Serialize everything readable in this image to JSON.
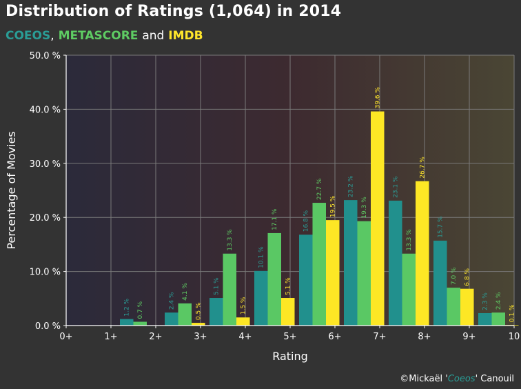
{
  "title": "Distribution  of Ratings  (1,064) in 2014",
  "subtitle": {
    "coeos": "COEOS",
    "comma": ",",
    "metascore": "METASCORE",
    "and": "and",
    "imdb": "IMDB"
  },
  "credit": {
    "prefix": "©Mickaël '",
    "name": "Coeos",
    "suffix": "' Canouil"
  },
  "chart_data": {
    "type": "bar",
    "title": "Distribution  of Ratings  (1,064) in 2014",
    "xlabel": "Rating",
    "ylabel": "Percentage of Movies",
    "xlim": [
      0,
      10
    ],
    "ylim": [
      0,
      0.5
    ],
    "categories": [
      "1+",
      "2+",
      "3+",
      "4+",
      "5+",
      "6+",
      "7+",
      "8+",
      "9+"
    ],
    "x_tick_labels": [
      "0+",
      "1+",
      "2+",
      "3+",
      "4+",
      "5+",
      "6+",
      "7+",
      "8+",
      "9+",
      "10"
    ],
    "y_tick_labels": [
      "0.0 %",
      "10.0 %",
      "20.0 %",
      "30.0 %",
      "40.0 %",
      "50.0 %"
    ],
    "y_ticks": [
      0,
      0.1,
      0.2,
      0.3,
      0.4,
      0.5
    ],
    "grid": true,
    "series": [
      {
        "name": "COEOS",
        "color": "#21908d",
        "label_color": "#2a9d96",
        "values": [
          0.012,
          0.024,
          0.051,
          0.101,
          0.168,
          0.232,
          0.231,
          0.157,
          0.023
        ],
        "labels": [
          "1.2 %",
          "2.4 %",
          "5.1 %",
          "10.1 %",
          "16.8 %",
          "23.2 %",
          "23.1 %",
          "15.7 %",
          "2.3 %"
        ]
      },
      {
        "name": "METASCORE",
        "color": "#5ac864",
        "label_color": "#5ecb63",
        "values": [
          0.007,
          0.041,
          0.133,
          0.171,
          0.227,
          0.193,
          0.133,
          0.07,
          0.024
        ],
        "labels": [
          "0.7 %",
          "4.1 %",
          "13.3 %",
          "17.1 %",
          "22.7 %",
          "19.3 %",
          "13.3 %",
          "7.0 %",
          "2.4 %"
        ]
      },
      {
        "name": "IMDB",
        "color": "#fde725",
        "label_color": "#ffe62b",
        "values": [
          0.0,
          0.005,
          0.015,
          0.051,
          0.195,
          0.396,
          0.267,
          0.068,
          0.001
        ],
        "labels": [
          "",
          "0.5 %",
          "1.5 %",
          "5.1 %",
          "19.5 %",
          "39.6 %",
          "26.7 %",
          "6.8 %",
          "0.1 %"
        ]
      }
    ]
  }
}
